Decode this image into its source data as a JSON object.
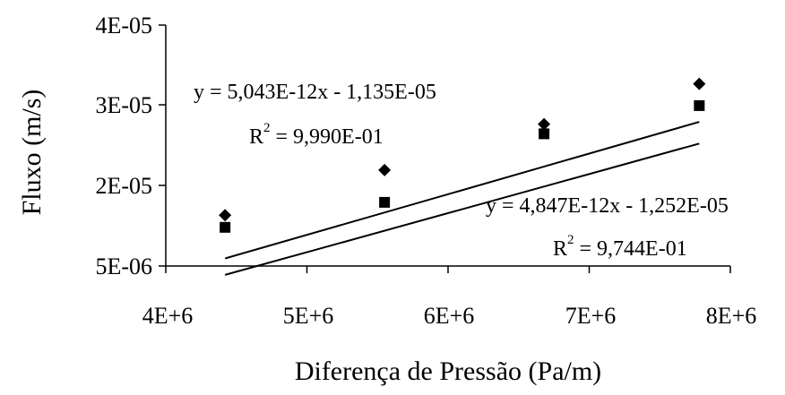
{
  "chart_data": {
    "type": "scatter",
    "title": "",
    "xlabel": "Diferença de Pressão (Pa/m)",
    "ylabel": "Fluxo (m/s)",
    "xlim": [
      4000000,
      8000000
    ],
    "x_ticks": [
      "4E+6",
      "5E+6",
      "6E+6",
      "7E+6",
      "8E+6"
    ],
    "y_ticks": [
      "5E-06",
      "2E-05",
      "3E-05",
      "4E-05"
    ],
    "grid": false,
    "legend": "none",
    "series": [
      {
        "marker": "diamond",
        "color": "#000000",
        "x": [
          4420000,
          5550000,
          6680000,
          7780000
        ],
        "y": [
          1.63e-05,
          2.19e-05,
          2.76e-05,
          3.26e-05
        ],
        "fit": {
          "slope": 5.043e-12,
          "intercept": -1.135e-05
        },
        "equation": {
          "line1": "y = 5,043E-12x - 1,135E-05",
          "r2_base": "R",
          "r2_exp": "2",
          "r2_value": " = 9,990E-01"
        }
      },
      {
        "marker": "square",
        "color": "#000000",
        "x": [
          4420000,
          5550000,
          6680000,
          7780000
        ],
        "y": [
          1.48e-05,
          1.79e-05,
          2.64e-05,
          2.99e-05
        ],
        "fit": {
          "slope": 4.847e-12,
          "intercept": -1.252e-05
        },
        "equation": {
          "line1": "y = 4,847E-12x - 1,252E-05",
          "r2_base": "R",
          "r2_exp": "2",
          "r2_value": " = 9,744E-01"
        }
      }
    ]
  }
}
